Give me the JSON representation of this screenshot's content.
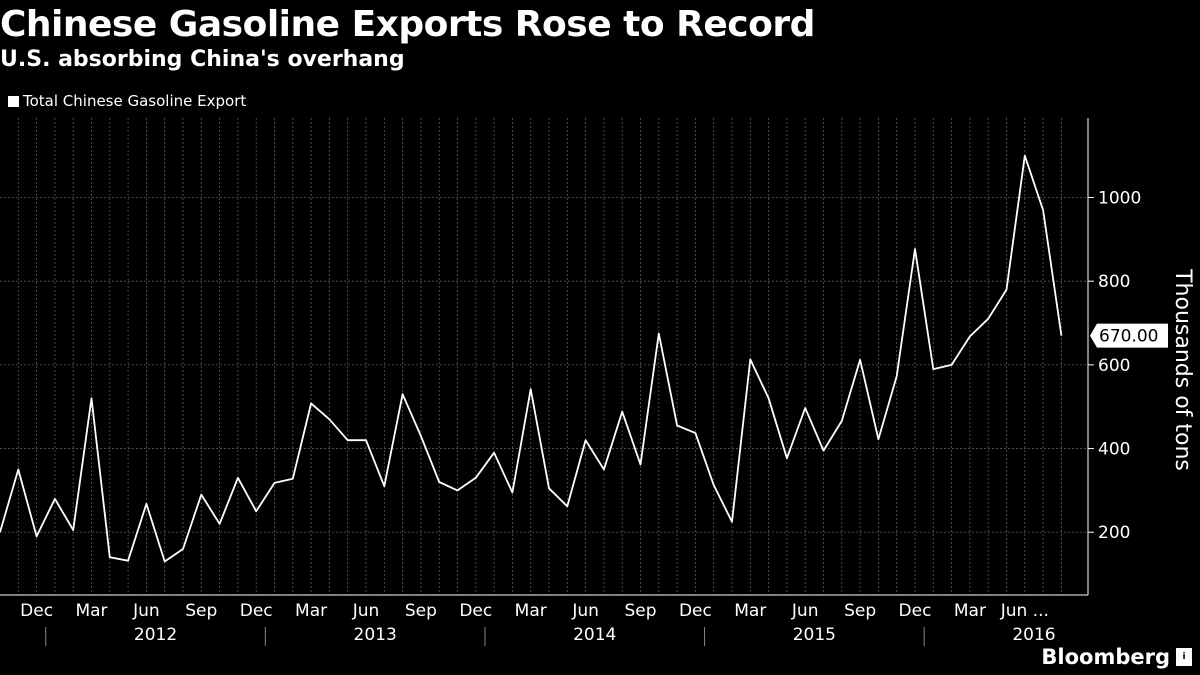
{
  "chart_data": {
    "type": "line",
    "title": "Chinese Gasoline Exports Rose to Record",
    "subtitle": "U.S. absorbing China's overhang",
    "xlabel": "",
    "ylabel": "Thousands of tons",
    "ylim": [
      50,
      1190
    ],
    "yticks": [
      200,
      400,
      600,
      800,
      1000
    ],
    "last_value_label": "670.00",
    "grid": true,
    "legend_position": "top-left",
    "line_color": "#ffffff",
    "background_color": "#000000",
    "grid_color": "#5a5a5a",
    "month_labels": [
      "Dec",
      "Mar",
      "Jun",
      "Sep",
      "Dec",
      "Mar",
      "Jun",
      "Sep",
      "Dec",
      "Mar",
      "Jun",
      "Sep",
      "Dec",
      "Mar",
      "Jun",
      "Sep",
      "Dec",
      "Mar",
      "Jun ..."
    ],
    "year_labels": [
      "2012",
      "2013",
      "2014",
      "2015",
      "2016"
    ],
    "series": [
      {
        "name": "Total Chinese Gasoline Export",
        "x": [
          "2011-10",
          "2011-11",
          "2011-12",
          "2012-01",
          "2012-02",
          "2012-03",
          "2012-04",
          "2012-05",
          "2012-06",
          "2012-07",
          "2012-08",
          "2012-09",
          "2012-10",
          "2012-11",
          "2012-12",
          "2013-01",
          "2013-02",
          "2013-03",
          "2013-04",
          "2013-05",
          "2013-06",
          "2013-07",
          "2013-08",
          "2013-09",
          "2013-10",
          "2013-11",
          "2013-12",
          "2014-01",
          "2014-02",
          "2014-03",
          "2014-04",
          "2014-05",
          "2014-06",
          "2014-07",
          "2014-08",
          "2014-09",
          "2014-10",
          "2014-11",
          "2014-12",
          "2015-01",
          "2015-02",
          "2015-03",
          "2015-04",
          "2015-05",
          "2015-06",
          "2015-07",
          "2015-08",
          "2015-09",
          "2015-10",
          "2015-11",
          "2015-12",
          "2016-01",
          "2016-02",
          "2016-03",
          "2016-04",
          "2016-05",
          "2016-06",
          "2016-07",
          "2016-08"
        ],
        "values": [
          200,
          350,
          190,
          280,
          205,
          520,
          140,
          132,
          268,
          130,
          160,
          290,
          220,
          330,
          250,
          318,
          328,
          508,
          470,
          420,
          420,
          310,
          530,
          430,
          320,
          300,
          330,
          390,
          295,
          542,
          305,
          262,
          420,
          350,
          488,
          362,
          675,
          455,
          437,
          313,
          225,
          613,
          520,
          377,
          497,
          395,
          466,
          612,
          422,
          573,
          877,
          590,
          600,
          668,
          710,
          780,
          1100,
          970,
          670
        ]
      }
    ]
  },
  "branding": {
    "logo_text": "Bloomberg",
    "logo_mark": "i"
  }
}
